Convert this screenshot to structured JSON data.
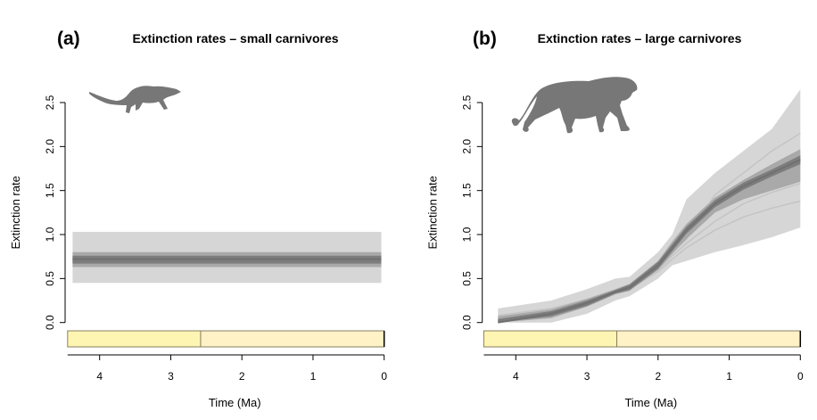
{
  "chart_data": [
    {
      "type": "area",
      "panel_label": "(a)",
      "title": "Extinction rates – small carnivores",
      "xlabel": "Time (Ma)",
      "ylabel": "Extinction rate",
      "xlim": [
        4.45,
        0
      ],
      "ylim": [
        0,
        2.5
      ],
      "xticks": [
        "4",
        "3",
        "2",
        "1",
        "0"
      ],
      "yticks": [
        "0.0",
        "0.5",
        "1.0",
        "1.5",
        "2.0",
        "2.5"
      ],
      "grid": false,
      "silhouette": "small-carnivore-icon",
      "x": [
        4.38,
        0.04
      ],
      "median": [
        0.72,
        0.72
      ],
      "band_outer": {
        "lower": [
          0.45,
          0.45
        ],
        "upper": [
          1.03,
          1.03
        ]
      },
      "band_mid": {
        "lower": [
          0.63,
          0.63
        ],
        "upper": [
          0.8,
          0.8
        ]
      },
      "band_inner": {
        "lower": [
          0.67,
          0.67
        ],
        "upper": [
          0.76,
          0.76
        ]
      },
      "timescale": [
        {
          "from": 4.45,
          "to": 2.58,
          "color": "#FFF5B3"
        },
        {
          "from": 2.58,
          "to": 0,
          "color": "#FFF2C7"
        }
      ],
      "colors": {
        "outer": "#d6d6d6",
        "mid": "#a9a9a9",
        "inner": "#7d7d7d"
      }
    },
    {
      "type": "area",
      "panel_label": "(b)",
      "title": "Extinction rates – large carnivores",
      "xlabel": "Time (Ma)",
      "ylabel": "Extinction rate",
      "xlim": [
        4.45,
        0
      ],
      "ylim": [
        0,
        2.5
      ],
      "xticks": [
        "4",
        "3",
        "2",
        "1",
        "0"
      ],
      "yticks": [
        "0.0",
        "0.5",
        "1.0",
        "1.5",
        "2.0",
        "2.5"
      ],
      "grid": false,
      "silhouette": "lion-icon",
      "x": [
        4.25,
        3.5,
        3.0,
        2.6,
        2.4,
        2.0,
        1.8,
        1.6,
        1.2,
        0.8,
        0.4,
        0.0
      ],
      "median": [
        0.0,
        0.1,
        0.22,
        0.35,
        0.4,
        0.65,
        0.85,
        1.05,
        1.35,
        1.55,
        1.7,
        1.85
      ],
      "band_outer": {
        "lower": [
          0.0,
          0.0,
          0.1,
          0.25,
          0.3,
          0.5,
          0.65,
          0.7,
          0.8,
          0.88,
          0.97,
          1.08
        ],
        "upper": [
          0.16,
          0.25,
          0.38,
          0.5,
          0.52,
          0.8,
          1.0,
          1.4,
          1.7,
          1.95,
          2.2,
          2.65
        ]
      },
      "band_mid": {
        "lower": [
          0.0,
          0.05,
          0.18,
          0.32,
          0.36,
          0.6,
          0.78,
          0.95,
          1.25,
          1.4,
          1.5,
          1.6
        ],
        "upper": [
          0.07,
          0.15,
          0.27,
          0.38,
          0.44,
          0.7,
          0.92,
          1.12,
          1.42,
          1.62,
          1.8,
          1.97
        ]
      },
      "band_inner": {
        "lower": [
          0.0,
          0.07,
          0.19,
          0.33,
          0.37,
          0.61,
          0.81,
          1.01,
          1.31,
          1.51,
          1.66,
          1.8
        ],
        "upper": [
          0.04,
          0.13,
          0.25,
          0.37,
          0.43,
          0.69,
          0.89,
          1.09,
          1.39,
          1.59,
          1.74,
          1.9
        ]
      },
      "sample_lines": [
        [
          0.08,
          0.16,
          0.26,
          0.36,
          0.4,
          0.62,
          0.8,
          0.95,
          1.45,
          1.7,
          1.95,
          2.15
        ],
        [
          0.03,
          0.1,
          0.2,
          0.33,
          0.38,
          0.58,
          0.72,
          0.85,
          1.05,
          1.2,
          1.3,
          1.38
        ],
        [
          0.02,
          0.09,
          0.2,
          0.34,
          0.39,
          0.6,
          0.76,
          0.9,
          1.15,
          1.35,
          1.48,
          1.58
        ]
      ],
      "timescale": [
        {
          "from": 4.45,
          "to": 2.58,
          "color": "#FFF5B3"
        },
        {
          "from": 2.58,
          "to": 0,
          "color": "#FFF2C7"
        }
      ],
      "colors": {
        "outer": "#d6d6d6",
        "mid": "#a9a9a9",
        "inner": "#7d7d7d",
        "sample": "#c4c4c4"
      }
    }
  ]
}
